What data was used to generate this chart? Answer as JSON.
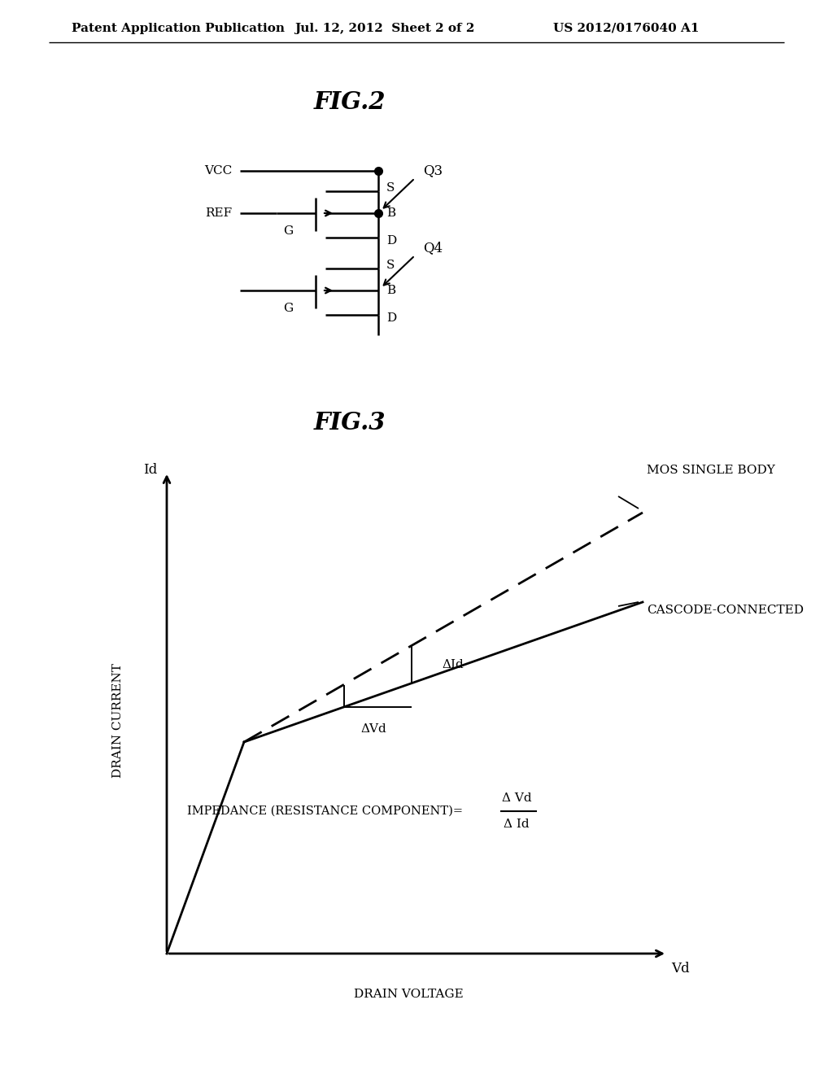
{
  "header_left": "Patent Application Publication",
  "header_mid": "Jul. 12, 2012  Sheet 2 of 2",
  "header_right": "US 2012/0176040 A1",
  "fig2_title": "FIG.2",
  "fig3_title": "FIG.3",
  "background": "#ffffff",
  "fig2": {
    "vcc_label": "VCC",
    "ref_label": "REF",
    "g_label": "G",
    "s_label": "S",
    "b_label": "B",
    "d_label": "D",
    "q3_label": "Q3",
    "q4_label": "Q4"
  },
  "fig3": {
    "mos_label": "MOS SINGLE BODY",
    "cascode_label": "CASCODE-CONNECTED",
    "delta_Vd": "ΔVd",
    "delta_Id": "ΔId",
    "impedance_text": "IMPEDANCE (RESISTANCE COMPONENT)=",
    "frac_num": "Δ Vd",
    "frac_den": "Δ Id",
    "drain_current": "DRAIN CURRENT",
    "drain_voltage": "DRAIN VOLTAGE",
    "vd_label": "Vd",
    "id_label": "Id"
  }
}
